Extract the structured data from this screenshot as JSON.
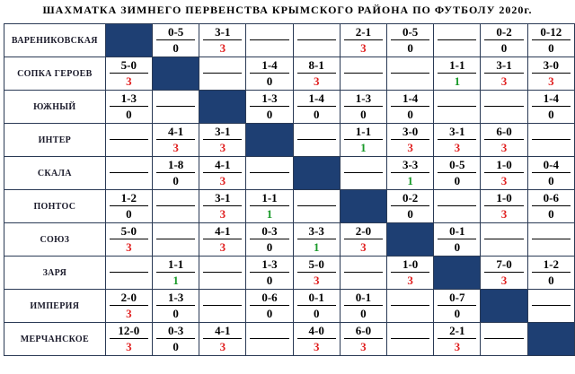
{
  "title": "ШАХМАТКА ЗИМНЕГО ПЕРВЕНСТВА КРЫМСКОГО РАЙОНА ПО ФУТБОЛУ 2020г.",
  "colors": {
    "diagonal": "#1e3f73",
    "win_points": "#e02020",
    "draw_points": "#1a9a2a",
    "loss_points": "#000000"
  },
  "teams": [
    {
      "name": "ВАРЕНИКОВСКАЯ",
      "cells": [
        {
          "diag": true
        },
        {
          "s": "0-5",
          "p": "0"
        },
        {
          "s": "3-1",
          "p": "3"
        },
        {
          "s": "",
          "p": ""
        },
        {
          "s": "",
          "p": ""
        },
        {
          "s": "2-1",
          "p": "3"
        },
        {
          "s": "0-5",
          "p": "0"
        },
        {
          "s": "",
          "p": ""
        },
        {
          "s": "0-2",
          "p": "0"
        },
        {
          "s": "0-12",
          "p": "0"
        }
      ]
    },
    {
      "name": "СОПКА ГЕРОЕВ",
      "cells": [
        {
          "s": "5-0",
          "p": "3"
        },
        {
          "diag": true
        },
        {
          "s": "",
          "p": ""
        },
        {
          "s": "1-4",
          "p": "0"
        },
        {
          "s": "8-1",
          "p": "3"
        },
        {
          "s": "",
          "p": ""
        },
        {
          "s": "",
          "p": ""
        },
        {
          "s": "1-1",
          "p": "1"
        },
        {
          "s": "3-1",
          "p": "3"
        },
        {
          "s": "3-0",
          "p": "3"
        }
      ]
    },
    {
      "name": "ЮЖНЫЙ",
      "cells": [
        {
          "s": "1-3",
          "p": "0"
        },
        {
          "s": "",
          "p": ""
        },
        {
          "diag": true
        },
        {
          "s": "1-3",
          "p": "0"
        },
        {
          "s": "1-4",
          "p": "0"
        },
        {
          "s": "1-3",
          "p": "0"
        },
        {
          "s": "1-4",
          "p": "0"
        },
        {
          "s": "",
          "p": ""
        },
        {
          "s": "",
          "p": ""
        },
        {
          "s": "1-4",
          "p": "0"
        }
      ]
    },
    {
      "name": "ИНТЕР",
      "cells": [
        {
          "s": "",
          "p": ""
        },
        {
          "s": "4-1",
          "p": "3"
        },
        {
          "s": "3-1",
          "p": "3"
        },
        {
          "diag": true
        },
        {
          "s": "",
          "p": ""
        },
        {
          "s": "1-1",
          "p": "1"
        },
        {
          "s": "3-0",
          "p": "3"
        },
        {
          "s": "3-1",
          "p": "3"
        },
        {
          "s": "6-0",
          "p": "3"
        },
        {
          "s": "",
          "p": ""
        }
      ]
    },
    {
      "name": "СКАЛА",
      "cells": [
        {
          "s": "",
          "p": ""
        },
        {
          "s": "1-8",
          "p": "0"
        },
        {
          "s": "4-1",
          "p": "3"
        },
        {
          "s": "",
          "p": ""
        },
        {
          "diag": true
        },
        {
          "s": "",
          "p": ""
        },
        {
          "s": "3-3",
          "p": "1"
        },
        {
          "s": "0-5",
          "p": "0"
        },
        {
          "s": "1-0",
          "p": "3"
        },
        {
          "s": "0-4",
          "p": "0"
        }
      ]
    },
    {
      "name": "ПОНТОС",
      "cells": [
        {
          "s": "1-2",
          "p": "0"
        },
        {
          "s": "",
          "p": ""
        },
        {
          "s": "3-1",
          "p": "3"
        },
        {
          "s": "1-1",
          "p": "1"
        },
        {
          "s": "",
          "p": ""
        },
        {
          "diag": true
        },
        {
          "s": "0-2",
          "p": "0"
        },
        {
          "s": "",
          "p": ""
        },
        {
          "s": "1-0",
          "p": "3"
        },
        {
          "s": "0-6",
          "p": "0"
        }
      ]
    },
    {
      "name": "СОЮЗ",
      "cells": [
        {
          "s": "5-0",
          "p": "3"
        },
        {
          "s": "",
          "p": ""
        },
        {
          "s": "4-1",
          "p": "3"
        },
        {
          "s": "0-3",
          "p": "0"
        },
        {
          "s": "3-3",
          "p": "1"
        },
        {
          "s": "2-0",
          "p": "3"
        },
        {
          "diag": true
        },
        {
          "s": "0-1",
          "p": "0"
        },
        {
          "s": "",
          "p": ""
        },
        {
          "s": "",
          "p": ""
        }
      ]
    },
    {
      "name": "ЗАРЯ",
      "cells": [
        {
          "s": "",
          "p": ""
        },
        {
          "s": "1-1",
          "p": "1"
        },
        {
          "s": "",
          "p": ""
        },
        {
          "s": "1-3",
          "p": "0"
        },
        {
          "s": "5-0",
          "p": "3"
        },
        {
          "s": "",
          "p": ""
        },
        {
          "s": "1-0",
          "p": "3"
        },
        {
          "diag": true
        },
        {
          "s": "7-0",
          "p": "3"
        },
        {
          "s": "1-2",
          "p": "0"
        }
      ]
    },
    {
      "name": "ИМПЕРИЯ",
      "cells": [
        {
          "s": "2-0",
          "p": "3"
        },
        {
          "s": "1-3",
          "p": "0"
        },
        {
          "s": "",
          "p": ""
        },
        {
          "s": "0-6",
          "p": "0"
        },
        {
          "s": "0-1",
          "p": "0"
        },
        {
          "s": "0-1",
          "p": "0"
        },
        {
          "s": "",
          "p": ""
        },
        {
          "s": "0-7",
          "p": "0"
        },
        {
          "diag": true
        },
        {
          "s": "",
          "p": ""
        }
      ]
    },
    {
      "name": "МЕРЧАНСКОЕ",
      "cells": [
        {
          "s": "12-0",
          "p": "3"
        },
        {
          "s": "0-3",
          "p": "0"
        },
        {
          "s": "4-1",
          "p": "3"
        },
        {
          "s": "",
          "p": ""
        },
        {
          "s": "4-0",
          "p": "3"
        },
        {
          "s": "6-0",
          "p": "3"
        },
        {
          "s": "",
          "p": ""
        },
        {
          "s": "2-1",
          "p": "3"
        },
        {
          "s": "",
          "p": ""
        },
        {
          "diag": true
        }
      ]
    }
  ]
}
